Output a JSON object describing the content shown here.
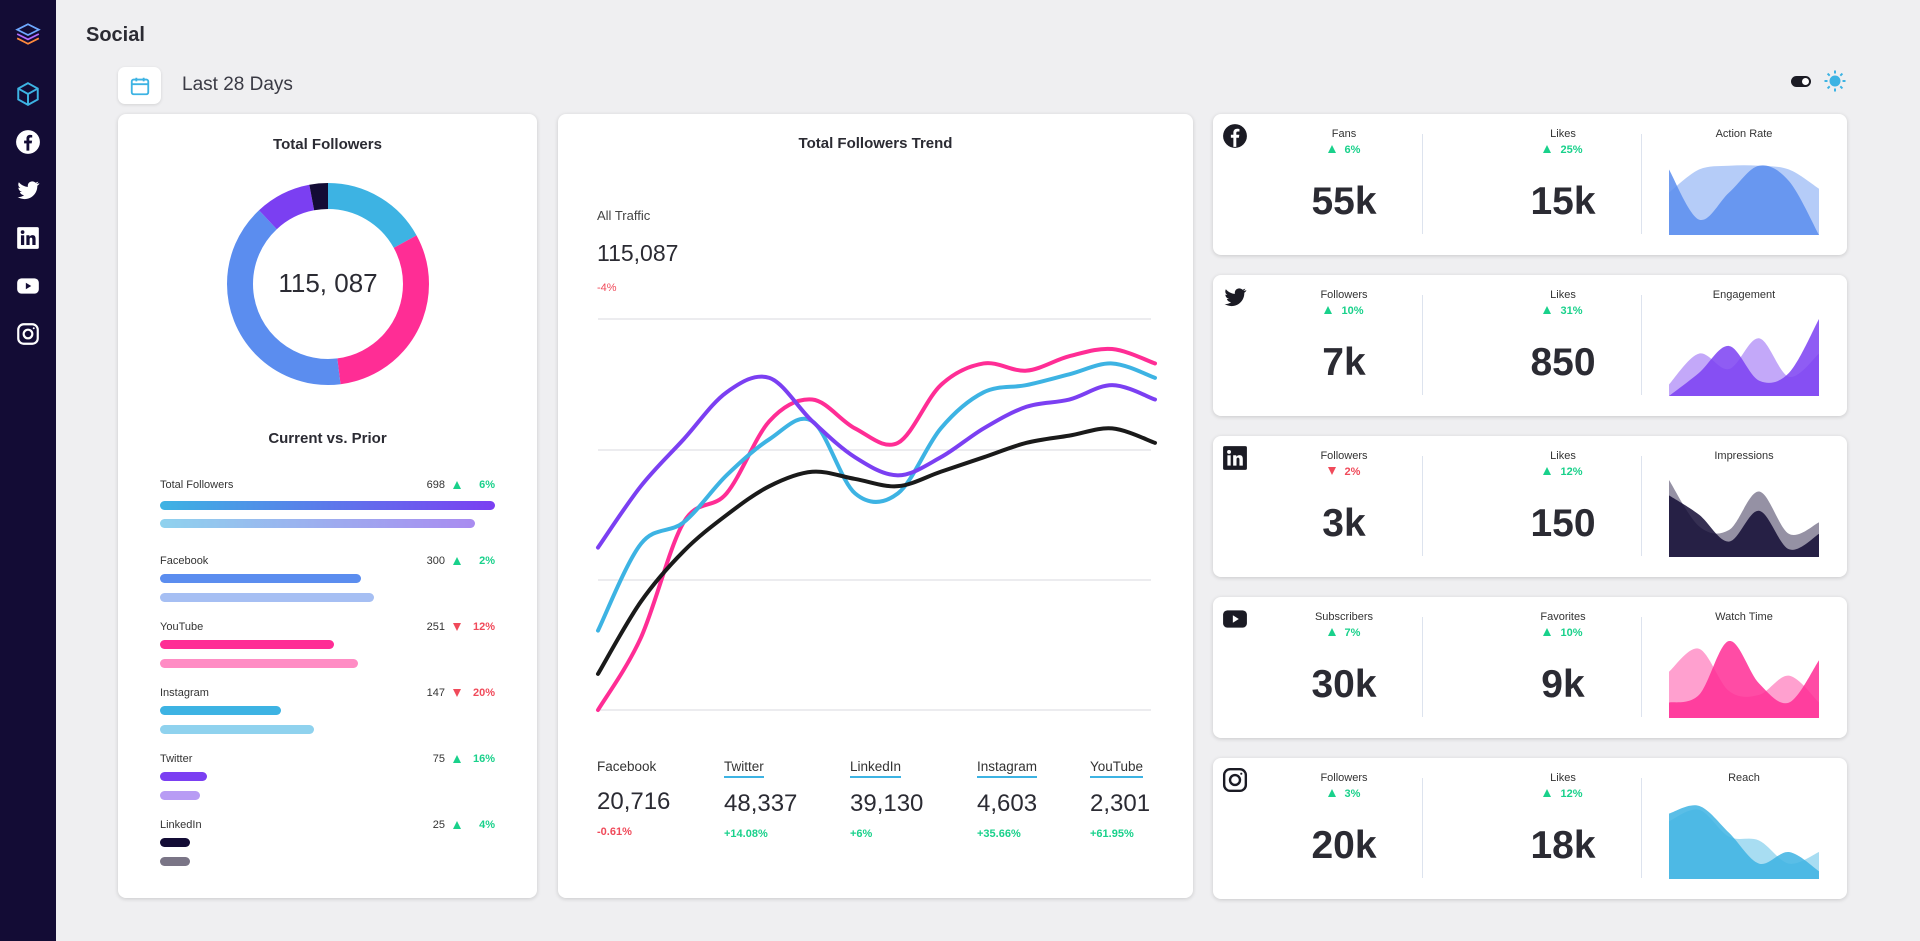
{
  "page": {
    "title": "Social"
  },
  "sidebar": {
    "items": [
      {
        "name": "logo-icon"
      },
      {
        "name": "cube-icon"
      },
      {
        "name": "facebook-icon"
      },
      {
        "name": "twitter-icon"
      },
      {
        "name": "linkedin-icon"
      },
      {
        "name": "youtube-icon"
      },
      {
        "name": "instagram-icon"
      }
    ]
  },
  "toolbar": {
    "date_range": "Last 28 Days"
  },
  "colors": {
    "sidebar": "#130c35",
    "blue": "#5b8def",
    "pink": "#ff2d95",
    "sky": "#3db3e3",
    "purple": "#7b3ff2",
    "navy": "#130c35",
    "black": "#1a1a1a",
    "positive": "#19d18b",
    "negative": "#f04a5a"
  },
  "total_followers": {
    "title": "Total Followers",
    "total": "115, 087",
    "segments": [
      {
        "name": "Facebook",
        "value": 40,
        "color": "#5b8def"
      },
      {
        "name": "YouTube",
        "value": 31,
        "color": "#ff2d95"
      },
      {
        "name": "Instagram",
        "value": 17,
        "color": "#3db3e3"
      },
      {
        "name": "Twitter",
        "value": 9,
        "color": "#7b3ff2"
      },
      {
        "name": "LinkedIn",
        "value": 3,
        "color": "#130c35"
      }
    ]
  },
  "comparison": {
    "title": "Current vs. Prior",
    "rows": [
      {
        "name": "Total Followers",
        "value": "698",
        "direction": "up",
        "pct": "6%",
        "current": 1.0,
        "prior": 0.94,
        "color": "#7b3ff2",
        "prior_color": "#a98bf0"
      },
      {
        "name": "Facebook",
        "value": "300",
        "direction": "up",
        "pct": "2%",
        "current": 0.6,
        "prior": 0.64,
        "color": "#5b8def",
        "prior_color": "#a6bff3"
      },
      {
        "name": "YouTube",
        "value": "251",
        "direction": "down",
        "pct": "12%",
        "current": 0.52,
        "prior": 0.59,
        "color": "#ff2d95",
        "prior_color": "#ff8cc4"
      },
      {
        "name": "Instagram",
        "value": "147",
        "direction": "down",
        "pct": "20%",
        "current": 0.36,
        "prior": 0.46,
        "color": "#3db3e3",
        "prior_color": "#8fd2ee"
      },
      {
        "name": "Twitter",
        "value": "75",
        "direction": "up",
        "pct": "16%",
        "current": 0.14,
        "prior": 0.12,
        "color": "#7b3ff2",
        "prior_color": "#b89cf4"
      },
      {
        "name": "LinkedIn",
        "value": "25",
        "direction": "up",
        "pct": "4%",
        "current": 0.09,
        "prior": 0.09,
        "color": "#130c35",
        "prior_color": "#7a7586"
      }
    ]
  },
  "trend": {
    "title": "Total Followers Trend",
    "label": "All Traffic",
    "total": "115,087",
    "change": "-4%",
    "legend": [
      {
        "name": "Facebook",
        "value": "20,716",
        "change": "-0.61%",
        "positive": false,
        "underline": ""
      },
      {
        "name": "Twitter",
        "value": "48,337",
        "change": "+14.08%",
        "positive": true,
        "underline": "#3db3e3"
      },
      {
        "name": "LinkedIn",
        "value": "39,130",
        "change": "+6%",
        "positive": true,
        "underline": "#3db3e3"
      },
      {
        "name": "Instagram",
        "value": "4,603",
        "change": "+35.66%",
        "positive": true,
        "underline": "#3db3e3"
      },
      {
        "name": "YouTube",
        "value": "2,301",
        "change": "+61.95%",
        "positive": true,
        "underline": "#3db3e3"
      }
    ]
  },
  "chart_data": {
    "type": "line",
    "title": "Total Followers Trend",
    "x": [
      0,
      1,
      2,
      3,
      4,
      5,
      6,
      7,
      8,
      9,
      10,
      11,
      12,
      13
    ],
    "ylim": [
      0,
      100
    ],
    "grid": true,
    "series": [
      {
        "color": "#ff2d95",
        "values": [
          0,
          20,
          52,
          60,
          80,
          86,
          78,
          74,
          90,
          96,
          94,
          98,
          100,
          96
        ]
      },
      {
        "color": "#3db3e3",
        "values": [
          22,
          46,
          52,
          65,
          75,
          80,
          60,
          60,
          78,
          88,
          90,
          93,
          96,
          92
        ]
      },
      {
        "color": "#7b3ff2",
        "values": [
          45,
          62,
          75,
          88,
          92,
          80,
          70,
          65,
          70,
          78,
          84,
          86,
          90,
          86
        ]
      },
      {
        "color": "#1a1a1a",
        "values": [
          10,
          30,
          44,
          54,
          62,
          66,
          64,
          62,
          66,
          70,
          74,
          76,
          78,
          74
        ]
      }
    ]
  },
  "social_cards": [
    {
      "network": "facebook-icon",
      "m1": {
        "label": "Fans",
        "direction": "up",
        "pct": "6%",
        "value": "55k"
      },
      "m2": {
        "label": "Likes",
        "direction": "up",
        "pct": "25%",
        "value": "15k"
      },
      "area": {
        "label": "Action Rate",
        "color": "#5b8def",
        "back": [
          0.55,
          0.85,
          0.9,
          0.9,
          0.85,
          0.6
        ],
        "front": [
          0.85,
          0.2,
          0.55,
          0.9,
          0.7,
          0.0
        ]
      }
    },
    {
      "network": "twitter-icon",
      "m1": {
        "label": "Followers",
        "direction": "up",
        "pct": "10%",
        "value": "7k"
      },
      "m2": {
        "label": "Likes",
        "direction": "up",
        "pct": "31%",
        "value": "850"
      },
      "area": {
        "label": "Engagement",
        "color": "#7b3ff2",
        "back": [
          0.15,
          0.55,
          0.35,
          0.75,
          0.25,
          0.55
        ],
        "front": [
          0.0,
          0.3,
          0.65,
          0.2,
          0.3,
          1.0
        ]
      }
    },
    {
      "network": "linkedin-icon",
      "m1": {
        "label": "Followers",
        "direction": "down",
        "pct": "2%",
        "value": "3k"
      },
      "m2": {
        "label": "Likes",
        "direction": "up",
        "pct": "12%",
        "value": "150"
      },
      "area": {
        "label": "Impressions",
        "color": "#130c35",
        "back": [
          1.0,
          0.4,
          0.35,
          0.85,
          0.3,
          0.45
        ],
        "front": [
          0.8,
          0.55,
          0.2,
          0.6,
          0.1,
          0.3
        ]
      }
    },
    {
      "network": "youtube-icon",
      "m1": {
        "label": "Subscribers",
        "direction": "up",
        "pct": "7%",
        "value": "30k"
      },
      "m2": {
        "label": "Favorites",
        "direction": "up",
        "pct": "10%",
        "value": "9k"
      },
      "area": {
        "label": "Watch Time",
        "color": "#ff2d95",
        "back": [
          0.6,
          0.9,
          0.35,
          0.3,
          0.55,
          0.2
        ],
        "front": [
          0.2,
          0.3,
          1.0,
          0.45,
          0.2,
          0.75
        ]
      }
    },
    {
      "network": "instagram-icon",
      "m1": {
        "label": "Followers",
        "direction": "up",
        "pct": "3%",
        "value": "20k"
      },
      "m2": {
        "label": "Likes",
        "direction": "up",
        "pct": "12%",
        "value": "18k"
      },
      "area": {
        "label": "Reach",
        "color": "#3db3e3",
        "back": [
          0.75,
          0.9,
          0.55,
          0.5,
          0.2,
          0.35
        ],
        "front": [
          0.85,
          0.95,
          0.6,
          0.2,
          0.35,
          0.1
        ]
      }
    }
  ]
}
